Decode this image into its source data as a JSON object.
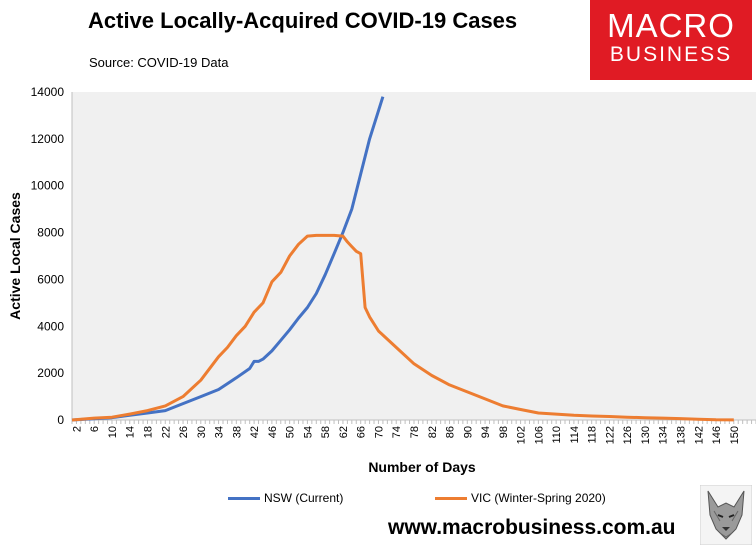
{
  "header": {
    "title": "Active Locally-Acquired COVID-19 Cases",
    "source": "Source: COVID-19 Data"
  },
  "logo": {
    "line1": "MACRO",
    "line2": "BUSINESS"
  },
  "footer": {
    "website": "www.macrobusiness.com.au"
  },
  "chart_data": {
    "type": "line",
    "title": "Active Locally-Acquired COVID-19 Cases",
    "xlabel": "Number of Days",
    "ylabel": "Active Local Cases",
    "xlim": [
      1,
      155
    ],
    "ylim": [
      0,
      14000
    ],
    "yticks": [
      0,
      2000,
      4000,
      6000,
      8000,
      10000,
      12000,
      14000
    ],
    "xticks": [
      2,
      6,
      10,
      14,
      18,
      22,
      26,
      30,
      34,
      38,
      42,
      46,
      50,
      54,
      58,
      62,
      66,
      70,
      74,
      78,
      82,
      86,
      90,
      94,
      98,
      102,
      106,
      110,
      114,
      118,
      122,
      126,
      130,
      134,
      138,
      142,
      146,
      150
    ],
    "grid": false,
    "legend_position": "bottom",
    "series": [
      {
        "name": "NSW (Current)",
        "color": "#4472c4",
        "x": [
          1,
          6,
          10,
          14,
          18,
          22,
          26,
          30,
          34,
          38,
          41,
          42,
          43,
          44,
          46,
          48,
          50,
          52,
          54,
          56,
          58,
          60,
          62,
          64,
          66,
          68,
          70,
          71
        ],
        "y": [
          0,
          50,
          100,
          200,
          300,
          400,
          700,
          1000,
          1300,
          1800,
          2200,
          2500,
          2500,
          2600,
          2950,
          3400,
          3850,
          4350,
          4800,
          5400,
          6200,
          7100,
          8000,
          9000,
          10500,
          12000,
          13200,
          13800
        ]
      },
      {
        "name": "VIC (Winter-Spring 2020)",
        "color": "#ed7d31",
        "x": [
          1,
          6,
          10,
          14,
          18,
          22,
          26,
          30,
          34,
          36,
          38,
          40,
          42,
          44,
          46,
          48,
          50,
          52,
          54,
          56,
          58,
          60,
          62,
          63,
          64,
          65,
          66,
          67,
          68,
          70,
          74,
          78,
          82,
          86,
          90,
          94,
          98,
          102,
          106,
          110,
          114,
          118,
          122,
          126,
          130,
          134,
          138,
          142,
          146,
          150
        ],
        "y": [
          0,
          80,
          120,
          250,
          400,
          600,
          1000,
          1700,
          2700,
          3100,
          3600,
          4000,
          4600,
          5000,
          5900,
          6300,
          7000,
          7500,
          7850,
          7880,
          7880,
          7880,
          7850,
          7600,
          7400,
          7200,
          7100,
          4800,
          4400,
          3800,
          3100,
          2400,
          1900,
          1500,
          1200,
          900,
          600,
          450,
          300,
          250,
          200,
          170,
          150,
          120,
          100,
          80,
          60,
          30,
          10,
          5
        ]
      }
    ]
  }
}
